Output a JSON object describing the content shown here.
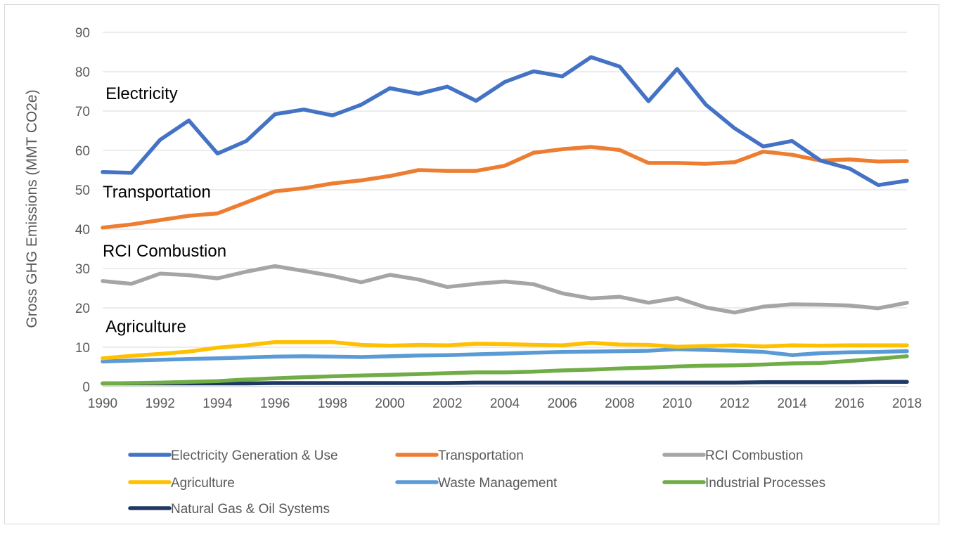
{
  "chart_data": {
    "type": "line",
    "title": "",
    "xlabel": "",
    "ylabel": "Gross GHG Emissions (MMT CO2e)",
    "ylim": [
      0,
      90
    ],
    "yticks": [
      0,
      10,
      20,
      30,
      40,
      50,
      60,
      70,
      80,
      90
    ],
    "xlim": [
      1990,
      2018
    ],
    "xticks": [
      1990,
      1992,
      1994,
      1996,
      1998,
      2000,
      2002,
      2004,
      2006,
      2008,
      2010,
      2012,
      2014,
      2016,
      2018
    ],
    "grid": "horizontal",
    "legend_position": "bottom",
    "x": [
      1990,
      1991,
      1992,
      1993,
      1994,
      1995,
      1996,
      1997,
      1998,
      1999,
      2000,
      2001,
      2002,
      2003,
      2004,
      2005,
      2006,
      2007,
      2008,
      2009,
      2010,
      2011,
      2012,
      2013,
      2014,
      2015,
      2016,
      2017,
      2018
    ],
    "series": [
      {
        "name": "Electricity Generation & Use",
        "color": "#4472C4",
        "values": [
          54.5,
          54.3,
          62.7,
          67.6,
          59.2,
          62.4,
          69.2,
          70.4,
          68.9,
          71.6,
          75.8,
          74.4,
          76.2,
          72.6,
          77.4,
          80.1,
          78.8,
          83.7,
          81.3,
          72.5,
          80.7,
          71.6,
          65.6,
          61.0,
          62.4,
          57.4,
          55.4,
          51.2,
          52.3
        ]
      },
      {
        "name": "Transportation",
        "color": "#ED7D31",
        "values": [
          40.4,
          41.2,
          42.3,
          43.4,
          44.0,
          46.8,
          49.6,
          50.4,
          51.6,
          52.4,
          53.5,
          55.0,
          54.8,
          54.8,
          56.1,
          59.4,
          60.3,
          60.9,
          60.1,
          56.8,
          56.8,
          56.6,
          57.0,
          59.7,
          58.9,
          57.4,
          57.7,
          57.2,
          57.3
        ]
      },
      {
        "name": "RCI Combustion",
        "color": "#A5A5A5",
        "values": [
          26.8,
          26.1,
          28.7,
          28.3,
          27.5,
          29.2,
          30.6,
          29.4,
          28.1,
          26.5,
          28.4,
          27.2,
          25.3,
          26.1,
          26.7,
          26.0,
          23.7,
          22.4,
          22.8,
          21.3,
          22.5,
          20.1,
          18.8,
          20.3,
          20.9,
          20.8,
          20.6,
          19.9,
          21.3
        ]
      },
      {
        "name": "Agriculture",
        "color": "#FFC000",
        "values": [
          7.2,
          7.8,
          8.3,
          8.9,
          9.9,
          10.5,
          11.3,
          11.3,
          11.3,
          10.6,
          10.4,
          10.6,
          10.5,
          10.9,
          10.8,
          10.6,
          10.5,
          11.1,
          10.7,
          10.6,
          10.1,
          10.3,
          10.5,
          10.2,
          10.5,
          10.4,
          10.5,
          10.5,
          10.5
        ]
      },
      {
        "name": "Waste Management",
        "color": "#5B9BD5",
        "values": [
          6.4,
          6.6,
          6.8,
          7.0,
          7.2,
          7.4,
          7.6,
          7.7,
          7.6,
          7.5,
          7.7,
          7.9,
          8.0,
          8.2,
          8.4,
          8.6,
          8.8,
          8.9,
          9.0,
          9.1,
          9.5,
          9.3,
          9.1,
          8.8,
          8.0,
          8.5,
          8.7,
          8.8,
          9.0
        ]
      },
      {
        "name": "Industrial Processes",
        "color": "#70AD47",
        "values": [
          0.8,
          0.9,
          1.0,
          1.2,
          1.4,
          1.8,
          2.1,
          2.4,
          2.6,
          2.8,
          3.0,
          3.2,
          3.4,
          3.6,
          3.6,
          3.8,
          4.1,
          4.3,
          4.6,
          4.8,
          5.1,
          5.3,
          5.4,
          5.6,
          5.9,
          6.0,
          6.5,
          7.1,
          7.7
        ]
      },
      {
        "name": "Natural Gas & Oil Systems",
        "color": "#203864",
        "values": [
          0.8,
          0.8,
          0.8,
          0.8,
          0.8,
          0.8,
          0.9,
          0.9,
          0.9,
          0.9,
          0.9,
          0.9,
          0.9,
          1.0,
          1.0,
          1.0,
          1.0,
          1.0,
          1.0,
          1.0,
          1.0,
          1.0,
          1.0,
          1.1,
          1.1,
          1.1,
          1.1,
          1.2,
          1.2
        ]
      }
    ],
    "annotations": [
      {
        "text": "Electricity",
        "x": 1990.1,
        "y": 73
      },
      {
        "text": "Transportation",
        "x": 1990.0,
        "y": 48
      },
      {
        "text": "RCI Combustion",
        "x": 1990.0,
        "y": 33
      },
      {
        "text": "Agriculture",
        "x": 1990.1,
        "y": 13.8
      }
    ]
  }
}
